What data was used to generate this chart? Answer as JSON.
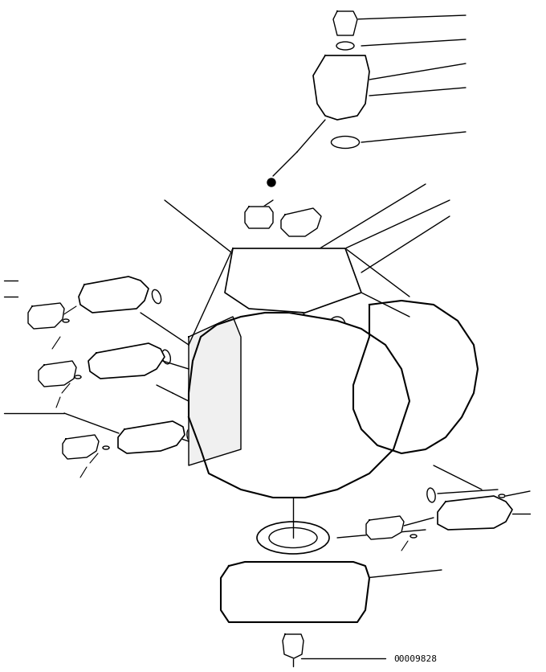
{
  "background_color": "#ffffff",
  "line_color": "#000000",
  "line_width": 1.0,
  "title": "",
  "watermark": "00009828",
  "fig_width": 6.8,
  "fig_height": 8.37,
  "dpi": 100
}
